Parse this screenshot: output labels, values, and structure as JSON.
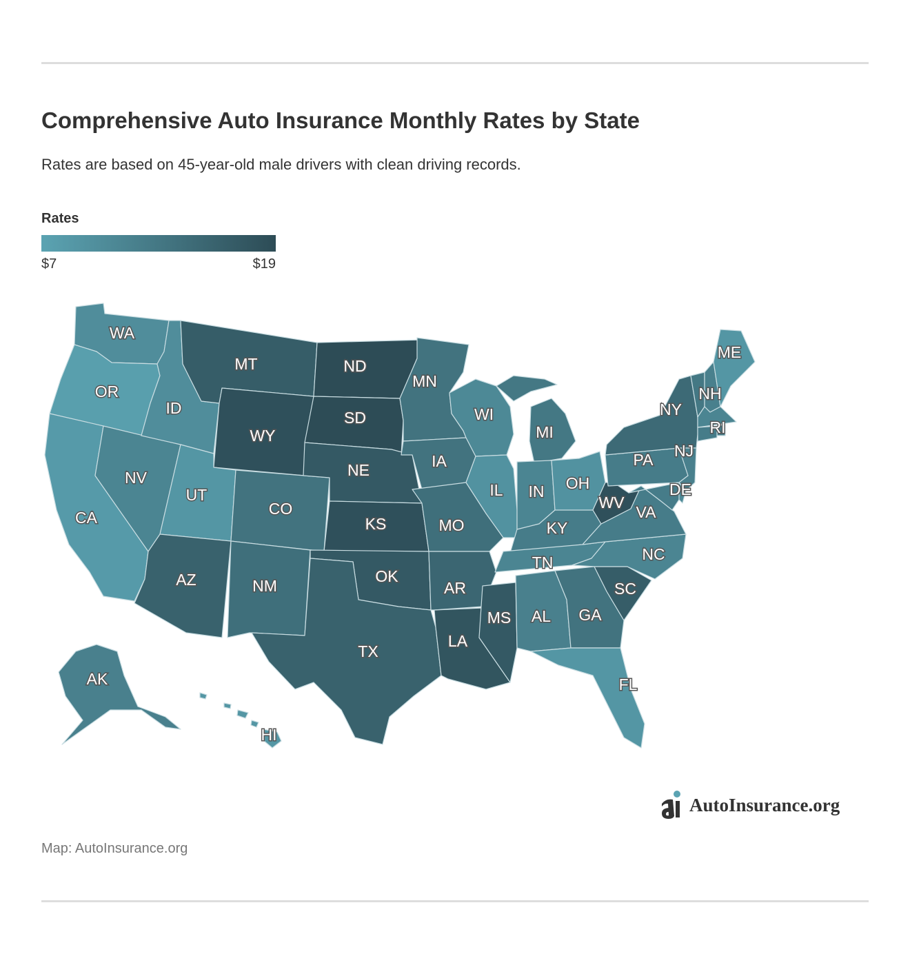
{
  "title": "Comprehensive Auto Insurance Monthly Rates by State",
  "subtitle": "Rates are based on 45-year-old male drivers with clean driving records.",
  "legend": {
    "title": "Rates",
    "min_label": "$7",
    "max_label": "$19",
    "min_color": "#5ba3b2",
    "max_color": "#2d4c56"
  },
  "source": "Map: AutoInsurance.org",
  "brand": {
    "name": "AutoInsurance.org",
    "accent": "#5ba3b2"
  },
  "map_data": {
    "metric": "comprehensive monthly rate (USD), estimated from shading",
    "range": [
      7,
      19
    ],
    "states": [
      {
        "code": "WA",
        "level": 0.25
      },
      {
        "code": "OR",
        "level": 0.05
      },
      {
        "code": "CA",
        "level": 0.1
      },
      {
        "code": "NV",
        "level": 0.35
      },
      {
        "code": "ID",
        "level": 0.25
      },
      {
        "code": "MT",
        "level": 0.8
      },
      {
        "code": "WY",
        "level": 0.95
      },
      {
        "code": "UT",
        "level": 0.15
      },
      {
        "code": "AZ",
        "level": 0.75
      },
      {
        "code": "CO",
        "level": 0.55
      },
      {
        "code": "NM",
        "level": 0.6
      },
      {
        "code": "ND",
        "level": 1.0
      },
      {
        "code": "SD",
        "level": 1.0
      },
      {
        "code": "NE",
        "level": 0.85
      },
      {
        "code": "KS",
        "level": 0.95
      },
      {
        "code": "OK",
        "level": 0.85
      },
      {
        "code": "TX",
        "level": 0.75
      },
      {
        "code": "MN",
        "level": 0.55
      },
      {
        "code": "IA",
        "level": 0.55
      },
      {
        "code": "MO",
        "level": 0.6
      },
      {
        "code": "AR",
        "level": 0.7
      },
      {
        "code": "LA",
        "level": 0.9
      },
      {
        "code": "WI",
        "level": 0.3
      },
      {
        "code": "IL",
        "level": 0.2
      },
      {
        "code": "MS",
        "level": 0.85
      },
      {
        "code": "MI",
        "level": 0.5
      },
      {
        "code": "IN",
        "level": 0.35
      },
      {
        "code": "OH",
        "level": 0.2
      },
      {
        "code": "KY",
        "level": 0.45
      },
      {
        "code": "TN",
        "level": 0.35
      },
      {
        "code": "AL",
        "level": 0.4
      },
      {
        "code": "GA",
        "level": 0.55
      },
      {
        "code": "FL",
        "level": 0.15
      },
      {
        "code": "SC",
        "level": 0.8
      },
      {
        "code": "NC",
        "level": 0.35
      },
      {
        "code": "VA",
        "level": 0.45
      },
      {
        "code": "WV",
        "level": 0.95
      },
      {
        "code": "PA",
        "level": 0.45
      },
      {
        "code": "NY",
        "level": 0.65
      },
      {
        "code": "NJ",
        "level": 0.4
      },
      {
        "code": "DE",
        "level": 0.3
      },
      {
        "code": "MD",
        "level": 0.45
      },
      {
        "code": "VT",
        "level": 0.5
      },
      {
        "code": "NH",
        "level": 0.4
      },
      {
        "code": "ME",
        "level": 0.15
      },
      {
        "code": "MA",
        "level": 0.35
      },
      {
        "code": "RI",
        "level": 0.45
      },
      {
        "code": "CT",
        "level": 0.45
      },
      {
        "code": "AK",
        "level": 0.4
      },
      {
        "code": "HI",
        "level": 0.15
      }
    ]
  }
}
